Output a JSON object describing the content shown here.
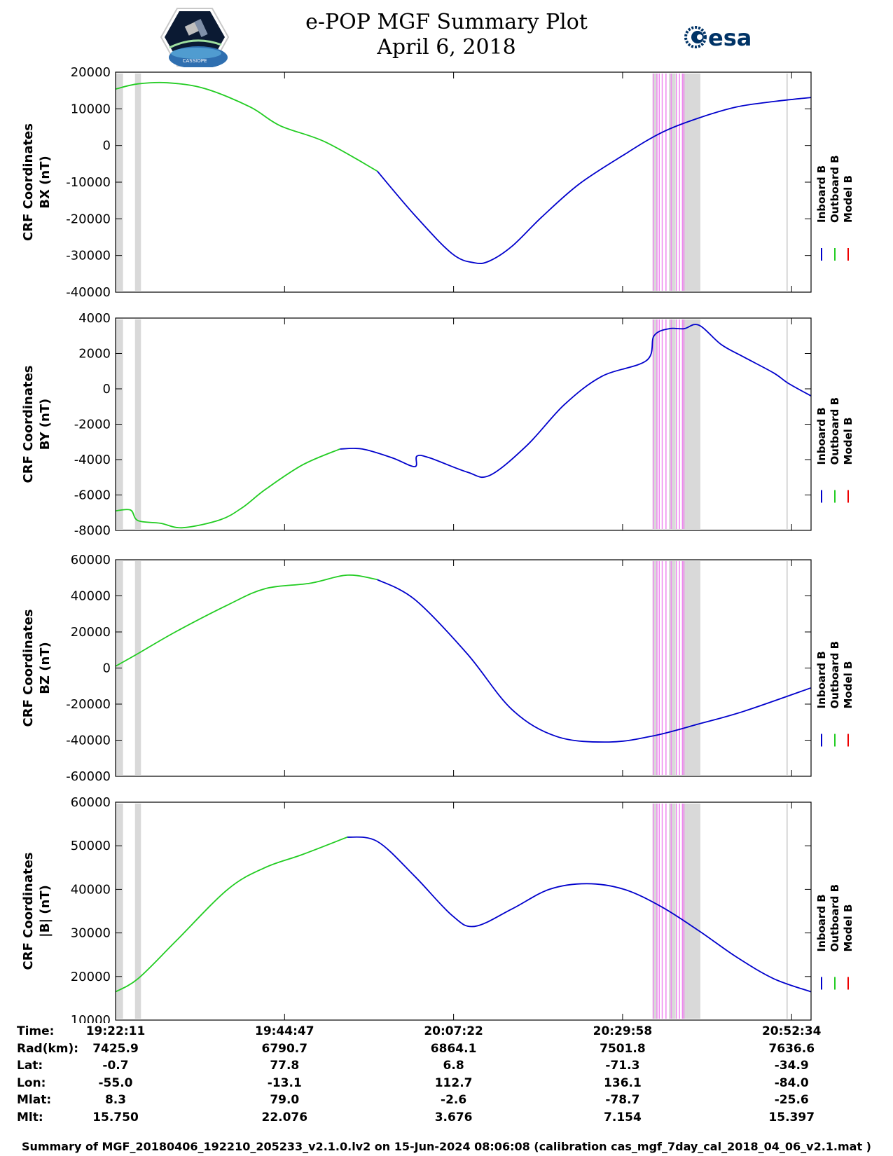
{
  "header": {
    "title": "e-POP MGF Summary Plot",
    "date": "April 6, 2018",
    "logo_left": "CASSIOPE",
    "logo_right": "esa"
  },
  "colors": {
    "inboard": "#0000cc",
    "outboard": "#22cc22",
    "model": "#ee0000",
    "gap_shade": "#d9d9d9",
    "event_lines": "#ee88ee"
  },
  "legend": [
    "Inboard B",
    "Outboard B",
    "Model B"
  ],
  "chart_data": [
    {
      "type": "line",
      "panel": "BX",
      "ylabel_line1": "CRF Coordinates",
      "ylabel_line2": "BX (nT)",
      "ylim": [
        -40000,
        20000
      ],
      "yticks": [
        20000,
        10000,
        0,
        -10000,
        -20000,
        -30000,
        -40000
      ],
      "x_minutes": [
        0,
        3,
        7,
        12,
        18,
        22,
        28,
        35,
        40,
        45,
        48,
        50,
        53,
        57,
        62,
        68,
        73,
        78,
        83,
        88,
        93
      ],
      "y": [
        15400,
        16800,
        17100,
        15500,
        10500,
        5400,
        1000,
        -7000,
        -19000,
        -29500,
        -32000,
        -31500,
        -27500,
        -19500,
        -10500,
        -2500,
        3500,
        7500,
        10500,
        12000,
        13100
      ],
      "outboard_until_minute": 37
    },
    {
      "type": "line",
      "panel": "BY",
      "ylabel_line1": "CRF Coordinates",
      "ylabel_line2": "BY (nT)",
      "ylim": [
        -8000,
        4000
      ],
      "yticks": [
        4000,
        2000,
        0,
        -2000,
        -4000,
        -6000,
        -8000
      ],
      "x_minutes": [
        0,
        2,
        3,
        6,
        9,
        14,
        17,
        20,
        25,
        30,
        33,
        37,
        40,
        40.3,
        42,
        47,
        50,
        55,
        60,
        65,
        71,
        72,
        74,
        76,
        78,
        81,
        84,
        88,
        90,
        93
      ],
      "y": [
        -6900,
        -6850,
        -7450,
        -7600,
        -7850,
        -7400,
        -6700,
        -5700,
        -4300,
        -3400,
        -3400,
        -3900,
        -4400,
        -3800,
        -3900,
        -4700,
        -4900,
        -3200,
        -900,
        700,
        1600,
        3000,
        3400,
        3400,
        3600,
        2500,
        1800,
        900,
        300,
        -400
      ],
      "outboard_until_minute": 30
    },
    {
      "type": "line",
      "panel": "BZ",
      "ylabel_line1": "CRF Coordinates",
      "ylabel_line2": "BZ (nT)",
      "ylim": [
        -60000,
        60000
      ],
      "yticks": [
        60000,
        40000,
        20000,
        0,
        -20000,
        -40000,
        -60000
      ],
      "x_minutes": [
        0,
        3,
        8,
        15,
        20,
        26,
        31,
        35,
        40,
        47,
        53,
        59,
        66,
        72,
        78,
        84,
        93
      ],
      "y": [
        1000,
        8000,
        20000,
        35000,
        44000,
        47000,
        51500,
        49000,
        38000,
        8000,
        -23000,
        -38000,
        -41000,
        -37500,
        -31000,
        -24000,
        -11000
      ],
      "outboard_until_minute": 35
    },
    {
      "type": "line",
      "panel": "|B|",
      "ylabel_line1": "CRF Coordinates",
      "ylabel_line2": "|B| (nT)",
      "ylim": [
        10000,
        60000
      ],
      "yticks": [
        60000,
        50000,
        40000,
        30000,
        20000,
        10000
      ],
      "x_minutes": [
        0,
        3,
        8,
        15,
        20,
        25,
        31,
        35,
        40,
        45,
        48,
        53,
        58,
        63,
        68,
        73,
        78,
        83,
        88,
        93
      ],
      "y": [
        16500,
        19500,
        28000,
        40000,
        45000,
        48000,
        52000,
        51000,
        43000,
        34000,
        31500,
        35500,
        40000,
        41300,
        40000,
        36000,
        30500,
        24500,
        19500,
        16500
      ],
      "outboard_until_minute": 33
    }
  ],
  "x_axis": {
    "minutes_total": 93,
    "tick_minutes": [
      0,
      22.6,
      45.2,
      67.8,
      90.4
    ]
  },
  "shading": {
    "gray_spans_minutes": [
      [
        0,
        1
      ],
      [
        2.6,
        3.4
      ],
      [
        71.8,
        72.4
      ],
      [
        74,
        74.9
      ],
      [
        75.8,
        78.2
      ],
      [
        76.5,
        77.6
      ]
    ],
    "magenta_lines_minutes": [
      71.9,
      72.4,
      72.7,
      73.1,
      73.6,
      74.3,
      75.0,
      75.4,
      75.8,
      76.0
    ],
    "thin_gray_line_minute": 89.8
  },
  "ephemeris": {
    "columns": [
      "19:22:11",
      "19:44:47",
      "20:07:22",
      "20:29:58",
      "20:52:34"
    ],
    "rows": [
      {
        "label": "Time:",
        "values": [
          "19:22:11",
          "19:44:47",
          "20:07:22",
          "20:29:58",
          "20:52:34"
        ]
      },
      {
        "label": "Rad(km):",
        "values": [
          "7425.9",
          "6790.7",
          "6864.1",
          "7501.8",
          "7636.6"
        ]
      },
      {
        "label": "Lat:",
        "values": [
          "-0.7",
          "77.8",
          "6.8",
          "-71.3",
          "-34.9"
        ]
      },
      {
        "label": "Lon:",
        "values": [
          "-55.0",
          "-13.1",
          "112.7",
          "136.1",
          "-84.0"
        ]
      },
      {
        "label": "Mlat:",
        "values": [
          "8.3",
          "79.0",
          "-2.6",
          "-78.7",
          "-25.6"
        ]
      },
      {
        "label": "Mlt:",
        "values": [
          "15.750",
          "22.076",
          "3.676",
          "7.154",
          "15.397"
        ]
      }
    ]
  },
  "footer": "Summary of MGF_20180406_192210_205233_v2.1.0.lv2 on 15-Jun-2024 08:06:08 (calibration cas_mgf_7day_cal_2018_04_06_v2.1.mat )"
}
